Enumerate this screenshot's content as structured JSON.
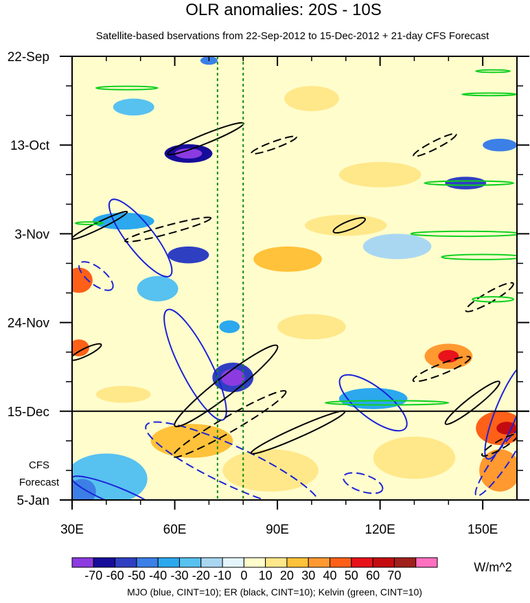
{
  "chart_data": {
    "type": "heatmap",
    "title": "OLR anomalies: 20S - 10S",
    "subtitle": "Satellite-based bservations from 22-Sep-2012 to 15-Dec-2012 + 21-day CFS Forecast",
    "x_axis": {
      "range": [
        30,
        160
      ],
      "ticks": [
        {
          "value": 30,
          "label": "30E"
        },
        {
          "value": 60,
          "label": "60E"
        },
        {
          "value": 90,
          "label": "90E"
        },
        {
          "value": 120,
          "label": "120E"
        },
        {
          "value": 150,
          "label": "150E"
        }
      ]
    },
    "y_axis": {
      "range_days": [
        0,
        105
      ],
      "direction": "time increases downward",
      "ticks": [
        {
          "day": 0,
          "label": "22-Sep"
        },
        {
          "day": 21,
          "label": "13-Oct"
        },
        {
          "day": 42,
          "label": "3-Nov"
        },
        {
          "day": 63,
          "label": "24-Nov"
        },
        {
          "day": 84,
          "label": "15-Dec"
        },
        {
          "day": 105,
          "label": "5-Jan"
        }
      ],
      "forecast_label": [
        "CFS",
        "Forecast"
      ],
      "forecast_start_day": 84
    },
    "reference_longitudes": [
      72.5,
      80
    ],
    "colorbar": {
      "levels": [
        "-70",
        "-60",
        "-50",
        "-40",
        "-30",
        "-20",
        "-10",
        "0",
        "10",
        "20",
        "30",
        "40",
        "50",
        "60",
        "70"
      ],
      "colors": [
        "#8B3BE0",
        "#160C9A",
        "#2F3FC2",
        "#3C7FE6",
        "#2BA8EE",
        "#57C1F0",
        "#A9D7F2",
        "#E5F5FC",
        "#FFFDCC",
        "#FFE88A",
        "#FFC23A",
        "#FF9930",
        "#FF6018",
        "#E8121A",
        "#C40C10",
        "#A0201C",
        "#FF70C0"
      ],
      "unit": "W/m^2"
    },
    "anomaly_blobs": [
      {
        "lon": 64,
        "day": 23,
        "rx": 7,
        "ry": 2.2,
        "value": -70
      },
      {
        "lon": 64,
        "day": 23,
        "rx": 4,
        "ry": 1.2,
        "value": -90
      },
      {
        "lon": 64,
        "day": 47,
        "rx": 6,
        "ry": 2.0,
        "value": -60
      },
      {
        "lon": 77,
        "day": 76,
        "rx": 6,
        "ry": 3.5,
        "value": -55
      },
      {
        "lon": 77,
        "day": 76,
        "rx": 3.5,
        "ry": 2.0,
        "value": -80
      },
      {
        "lon": 76,
        "day": 64,
        "rx": 3,
        "ry": 1.5,
        "value": -40
      },
      {
        "lon": 70,
        "day": 1,
        "rx": 2.5,
        "ry": 1,
        "value": -50
      },
      {
        "lon": 45,
        "day": 39,
        "rx": 9,
        "ry": 2,
        "value": -35
      },
      {
        "lon": 55,
        "day": 55,
        "rx": 6,
        "ry": 3,
        "value": -25
      },
      {
        "lon": 48,
        "day": 12,
        "rx": 6,
        "ry": 2,
        "value": -25
      },
      {
        "lon": 145,
        "day": 30,
        "rx": 6,
        "ry": 1.5,
        "value": -60
      },
      {
        "lon": 155,
        "day": 21,
        "rx": 5,
        "ry": 1.5,
        "value": -45
      },
      {
        "lon": 125,
        "day": 45,
        "rx": 10,
        "ry": 3,
        "value": -20
      },
      {
        "lon": 118,
        "day": 81,
        "rx": 10,
        "ry": 2.5,
        "value": -35
      },
      {
        "lon": 40,
        "day": 100,
        "rx": 12,
        "ry": 6,
        "value": -25
      },
      {
        "lon": 33,
        "day": 103,
        "rx": 4,
        "ry": 3,
        "value": -45
      },
      {
        "lon": 100,
        "day": 10,
        "rx": 8,
        "ry": 3,
        "value": 15
      },
      {
        "lon": 120,
        "day": 28,
        "rx": 12,
        "ry": 3,
        "value": 15
      },
      {
        "lon": 93,
        "day": 48,
        "rx": 10,
        "ry": 3,
        "value": 20
      },
      {
        "lon": 110,
        "day": 40,
        "rx": 12,
        "ry": 2.5,
        "value": 15
      },
      {
        "lon": 32,
        "day": 53,
        "rx": 4,
        "ry": 3,
        "value": 45
      },
      {
        "lon": 32,
        "day": 69,
        "rx": 3,
        "ry": 2,
        "value": 40
      },
      {
        "lon": 140,
        "day": 71,
        "rx": 7,
        "ry": 3,
        "value": 35
      },
      {
        "lon": 140,
        "day": 71,
        "rx": 3,
        "ry": 1.5,
        "value": 55
      },
      {
        "lon": 155,
        "day": 88,
        "rx": 7,
        "ry": 4,
        "value": 45
      },
      {
        "lon": 157,
        "day": 88,
        "rx": 3,
        "ry": 1.5,
        "value": 60
      },
      {
        "lon": 155,
        "day": 98,
        "rx": 6,
        "ry": 5,
        "value": 30
      },
      {
        "lon": 65,
        "day": 91,
        "rx": 12,
        "ry": 4,
        "value": 20
      },
      {
        "lon": 88,
        "day": 98,
        "rx": 14,
        "ry": 5,
        "value": 15
      },
      {
        "lon": 130,
        "day": 95,
        "rx": 12,
        "ry": 5,
        "value": 15
      },
      {
        "lon": 100,
        "day": 64,
        "rx": 10,
        "ry": 3,
        "value": 15
      },
      {
        "lon": 45,
        "day": 80,
        "rx": 8,
        "ry": 2,
        "value": 15
      }
    ],
    "contours": [
      {
        "color": "blue",
        "dashed": false,
        "lon": 50,
        "day": 43,
        "rx": 14,
        "ry": 3.2,
        "angle": 52
      },
      {
        "color": "blue",
        "dashed": false,
        "lon": 66,
        "day": 73,
        "rx": 18,
        "ry": 3.6,
        "angle": 63
      },
      {
        "color": "blue",
        "dashed": false,
        "lon": 118,
        "day": 82,
        "rx": 12,
        "ry": 3.6,
        "angle": 38
      },
      {
        "color": "blue",
        "dashed": false,
        "lon": 157,
        "day": 84,
        "rx": 15,
        "ry": 2.6,
        "angle": -68
      },
      {
        "color": "blue",
        "dashed": false,
        "lon": 43,
        "day": 104,
        "rx": 14,
        "ry": 2.0,
        "angle": 22
      },
      {
        "color": "blue",
        "dashed": true,
        "lon": 37,
        "day": 52,
        "rx": 6,
        "ry": 2.0,
        "angle": 38
      },
      {
        "color": "blue",
        "dashed": true,
        "lon": 77,
        "day": 97,
        "rx": 28,
        "ry": 4.6,
        "angle": 25
      },
      {
        "color": "blue",
        "dashed": true,
        "lon": 115,
        "day": 101,
        "rx": 6,
        "ry": 2.0,
        "angle": 18
      },
      {
        "color": "blue",
        "dashed": true,
        "lon": 155,
        "day": 96,
        "rx": 12,
        "ry": 1.8,
        "angle": -55
      },
      {
        "color": "black",
        "dashed": false,
        "lon": 69,
        "day": 19.5,
        "rx": 12,
        "ry": 1.1,
        "angle": -22
      },
      {
        "color": "black",
        "dashed": false,
        "lon": 75,
        "day": 78,
        "rx": 19,
        "ry": 2.2,
        "angle": -38
      },
      {
        "color": "black",
        "dashed": false,
        "lon": 96,
        "day": 89,
        "rx": 15,
        "ry": 1.2,
        "angle": -24
      },
      {
        "color": "black",
        "dashed": false,
        "lon": 147,
        "day": 82,
        "rx": 10,
        "ry": 1.3,
        "angle": -38
      },
      {
        "color": "black",
        "dashed": false,
        "lon": 38,
        "day": 40,
        "rx": 9,
        "ry": 0.8,
        "angle": -26
      },
      {
        "color": "black",
        "dashed": false,
        "lon": 111,
        "day": 40,
        "rx": 5,
        "ry": 1.0,
        "angle": -22
      },
      {
        "color": "black",
        "dashed": false,
        "lon": 34,
        "day": 70,
        "rx": 5,
        "ry": 0.9,
        "angle": -26
      },
      {
        "color": "black",
        "dashed": true,
        "lon": 89,
        "day": 21,
        "rx": 7,
        "ry": 0.8,
        "angle": -20
      },
      {
        "color": "black",
        "dashed": true,
        "lon": 58,
        "day": 41,
        "rx": 13,
        "ry": 1.0,
        "angle": -15
      },
      {
        "color": "black",
        "dashed": true,
        "lon": 76,
        "day": 87,
        "rx": 19,
        "ry": 1.8,
        "angle": -30
      },
      {
        "color": "black",
        "dashed": true,
        "lon": 136,
        "day": 21,
        "rx": 7,
        "ry": 0.9,
        "angle": -27
      },
      {
        "color": "black",
        "dashed": true,
        "lon": 138,
        "day": 74,
        "rx": 9,
        "ry": 1.2,
        "angle": -22
      },
      {
        "color": "black",
        "dashed": true,
        "lon": 152,
        "day": 57,
        "rx": 8,
        "ry": 1.2,
        "angle": -30
      },
      {
        "color": "black",
        "dashed": true,
        "lon": 155,
        "day": 92,
        "rx": 6,
        "ry": 1.0,
        "angle": -30
      },
      {
        "color": "green",
        "dashed": false,
        "lon": 46,
        "day": 7.5,
        "rx": 9,
        "ry": 0.4,
        "angle": 0
      },
      {
        "color": "green",
        "dashed": false,
        "lon": 146,
        "day": 30,
        "rx": 13,
        "ry": 0.5,
        "angle": 0
      },
      {
        "color": "green",
        "dashed": false,
        "lon": 145,
        "day": 42,
        "rx": 16,
        "ry": 0.6,
        "angle": 0
      },
      {
        "color": "green",
        "dashed": false,
        "lon": 150,
        "day": 47.5,
        "rx": 12,
        "ry": 0.6,
        "angle": 0
      },
      {
        "color": "green",
        "dashed": false,
        "lon": 152,
        "day": 9,
        "rx": 8,
        "ry": 0.3,
        "angle": 0
      },
      {
        "color": "green",
        "dashed": false,
        "lon": 153,
        "day": 3.5,
        "rx": 5,
        "ry": 0.3,
        "angle": 0
      },
      {
        "color": "green",
        "dashed": false,
        "lon": 153,
        "day": 57.5,
        "rx": 6,
        "ry": 0.6,
        "angle": 0
      },
      {
        "color": "green",
        "dashed": false,
        "lon": 122,
        "day": 82,
        "rx": 18,
        "ry": 0.5,
        "angle": 0
      },
      {
        "color": "green",
        "dashed": false,
        "lon": 35,
        "day": 39.5,
        "rx": 4,
        "ry": 0.3,
        "angle": 0
      }
    ],
    "legend_text": "MJO (blue, CINT=10); ER (black, CINT=10); Kelvin (green, CINT=10)"
  }
}
